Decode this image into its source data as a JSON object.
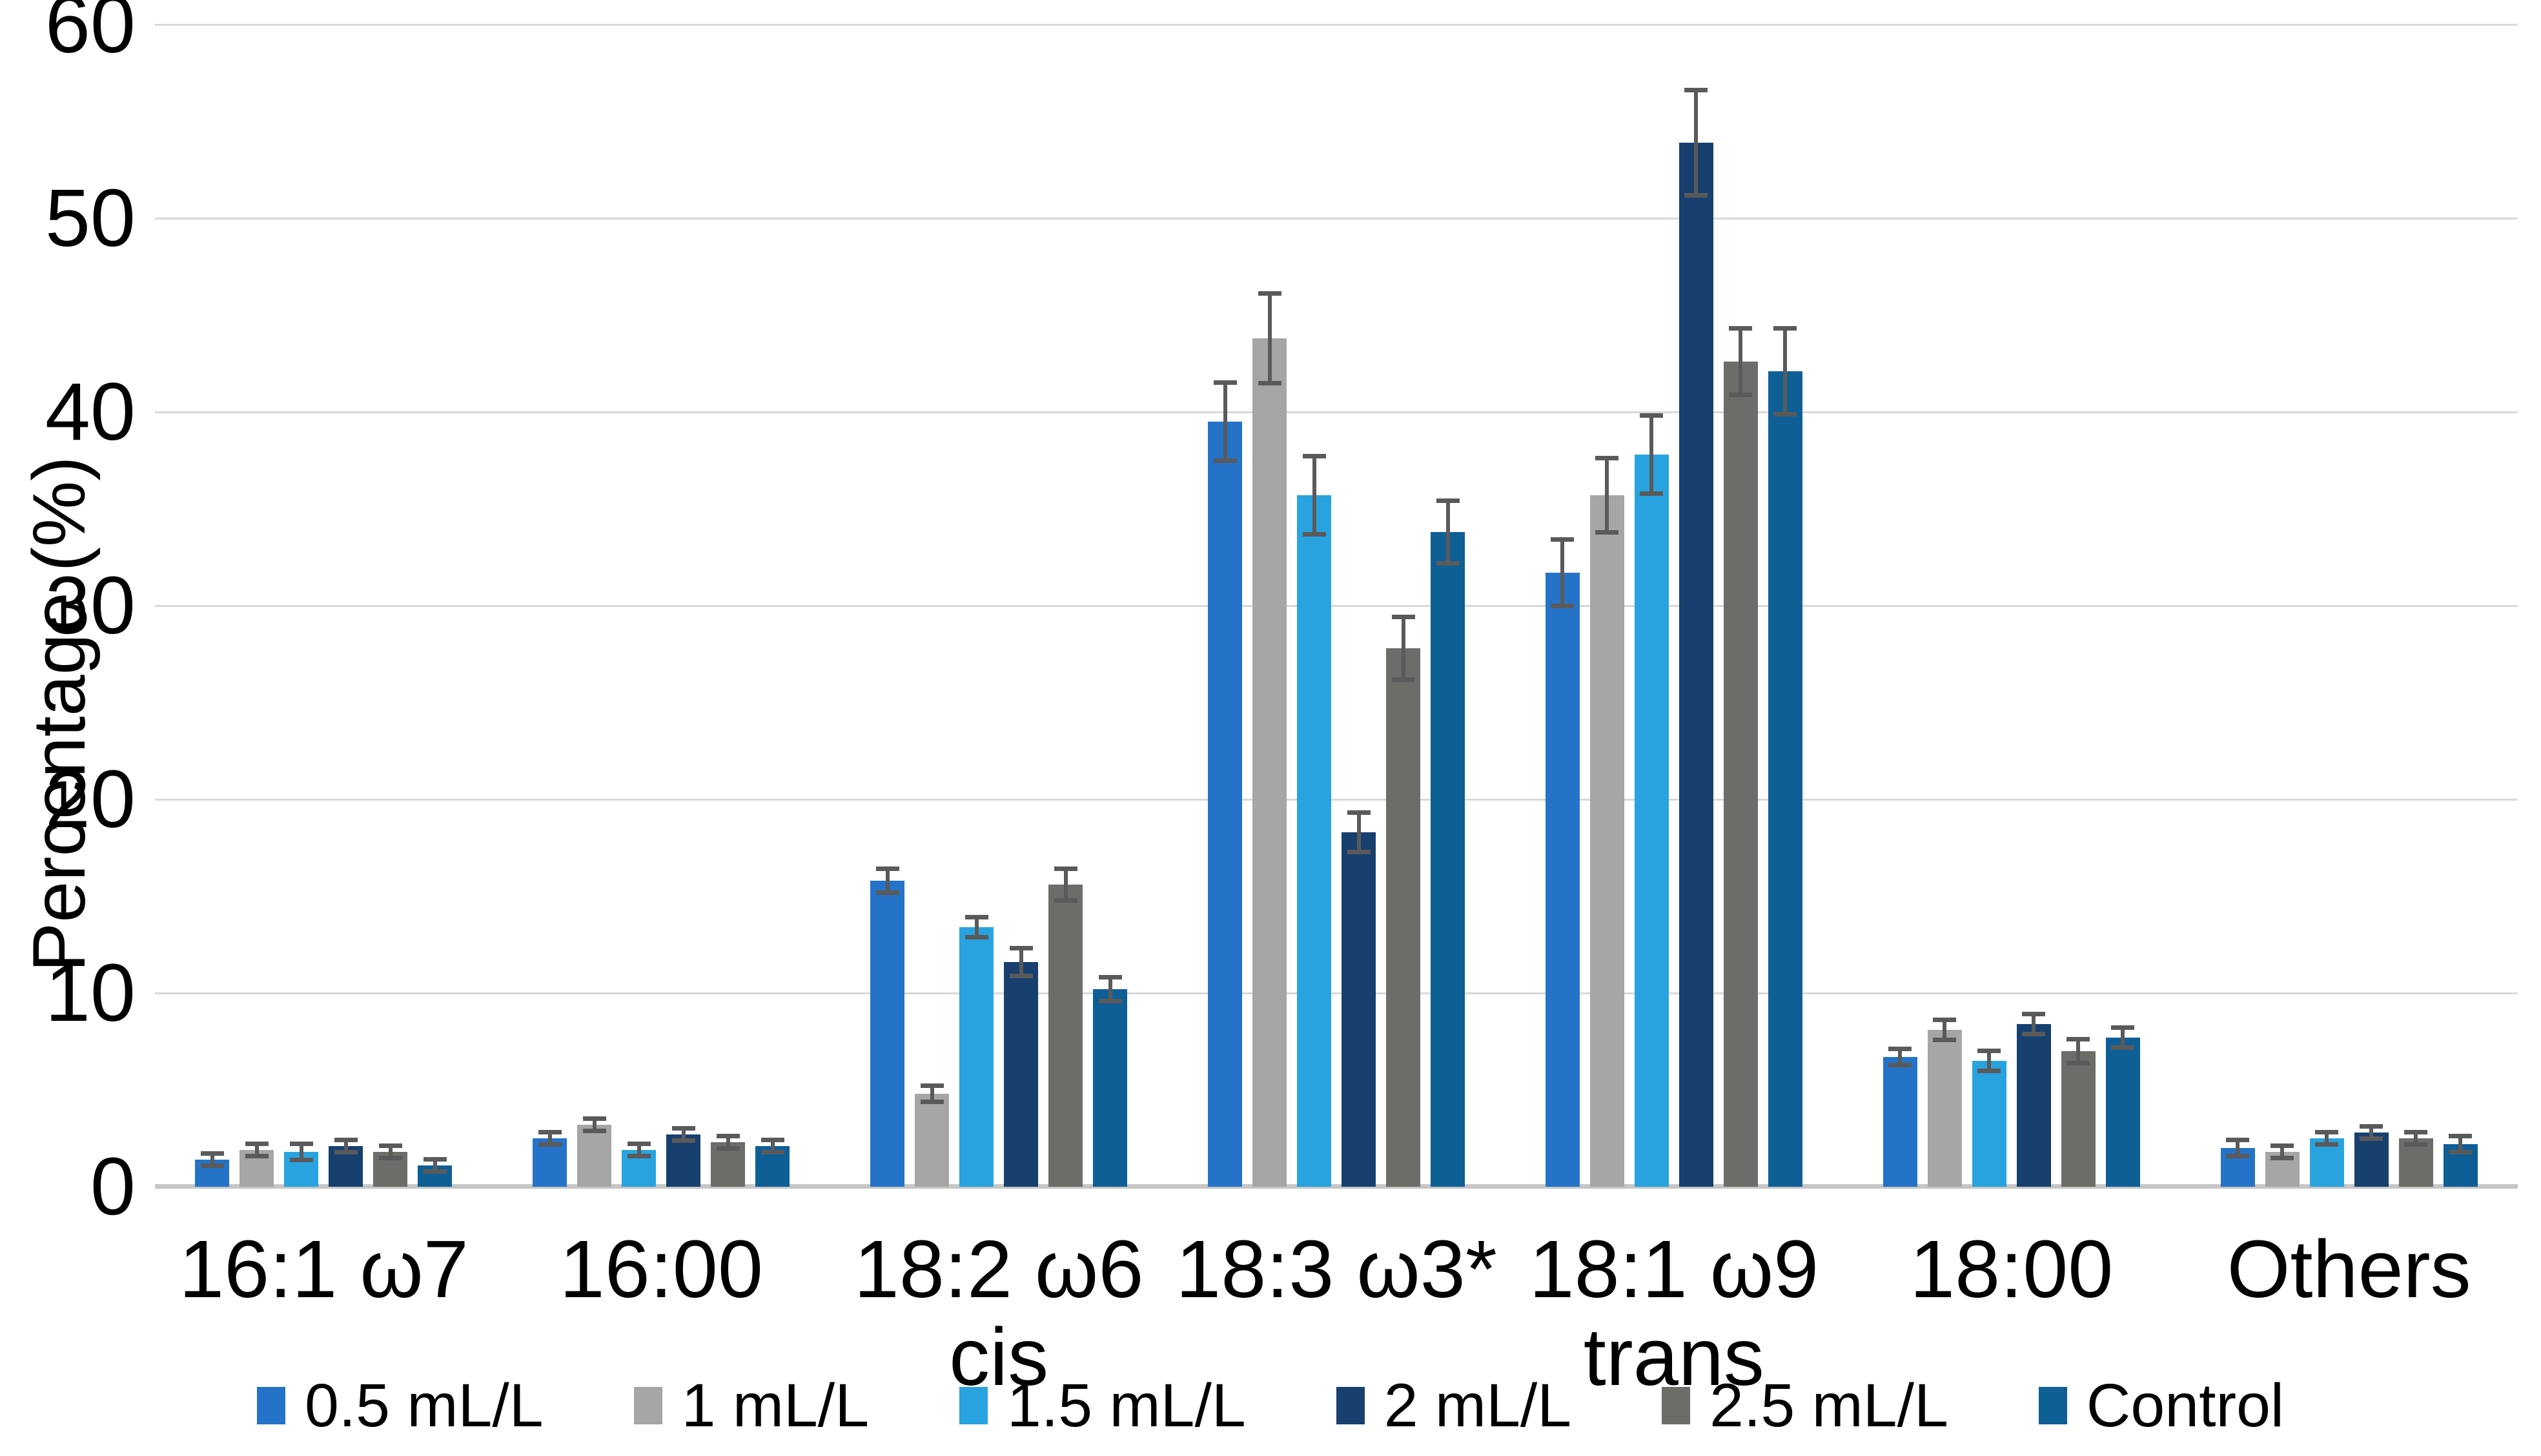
{
  "chart_data": {
    "type": "bar",
    "title": "",
    "xlabel": "",
    "ylabel": "Percentage (%)",
    "ylim": [
      0,
      60
    ],
    "yticks": [
      0,
      10,
      20,
      30,
      40,
      50,
      60
    ],
    "grid": "horizontal",
    "legend_position": "bottom",
    "error_bars": true,
    "categories": [
      "16:1 ω7",
      "16:00",
      "18:2 ω6 cis",
      "18:3 ω3*",
      "18:1 ω9 trans",
      "18:00",
      "Others"
    ],
    "category_labels": [
      [
        "16:1 ω7"
      ],
      [
        "16:00"
      ],
      [
        "18:2 ω6 cis"
      ],
      [
        "18:3 ω3*"
      ],
      [
        "18:1 ω9",
        "trans"
      ],
      [
        "18:00"
      ],
      [
        "Others"
      ]
    ],
    "series": [
      {
        "name": "0.5 mL/L",
        "color": "#2473C9",
        "values": [
          1.4,
          2.5,
          15.8,
          39.5,
          31.7,
          6.7,
          2.0
        ],
        "errors": [
          0.2,
          0.2,
          0.5,
          1.9,
          1.6,
          0.3,
          0.3
        ]
      },
      {
        "name": "1 mL/L",
        "color": "#A6A6A6",
        "values": [
          1.9,
          3.2,
          4.8,
          43.8,
          35.7,
          8.1,
          1.8
        ],
        "errors": [
          0.2,
          0.2,
          0.3,
          2.2,
          1.8,
          0.4,
          0.2
        ]
      },
      {
        "name": "1.5 mL/L",
        "color": "#29A3DF",
        "values": [
          1.8,
          1.9,
          13.4,
          35.7,
          37.8,
          6.5,
          2.5
        ],
        "errors": [
          0.3,
          0.2,
          0.4,
          1.9,
          1.9,
          0.4,
          0.2
        ]
      },
      {
        "name": "2 mL/L",
        "color": "#17406F",
        "values": [
          2.1,
          2.7,
          11.6,
          18.3,
          53.9,
          8.4,
          2.8
        ],
        "errors": [
          0.2,
          0.2,
          0.6,
          0.9,
          2.6,
          0.4,
          0.2
        ]
      },
      {
        "name": "2.5 mL/L",
        "color": "#6C6C69",
        "values": [
          1.8,
          2.3,
          15.6,
          27.8,
          42.6,
          7.0,
          2.5
        ],
        "errors": [
          0.2,
          0.2,
          0.7,
          1.5,
          1.6,
          0.5,
          0.2
        ]
      },
      {
        "name": "Control",
        "color": "#0F5F97",
        "values": [
          1.1,
          2.1,
          10.2,
          33.8,
          42.1,
          7.7,
          2.2
        ],
        "errors": [
          0.2,
          0.2,
          0.5,
          1.5,
          2.1,
          0.4,
          0.3
        ]
      }
    ],
    "style": {
      "gridline_color": "#D9D9D9",
      "axis_line_color": "#C6C6C6",
      "error_bar_color": "#5A5A5A",
      "text_color": "#000000"
    }
  }
}
